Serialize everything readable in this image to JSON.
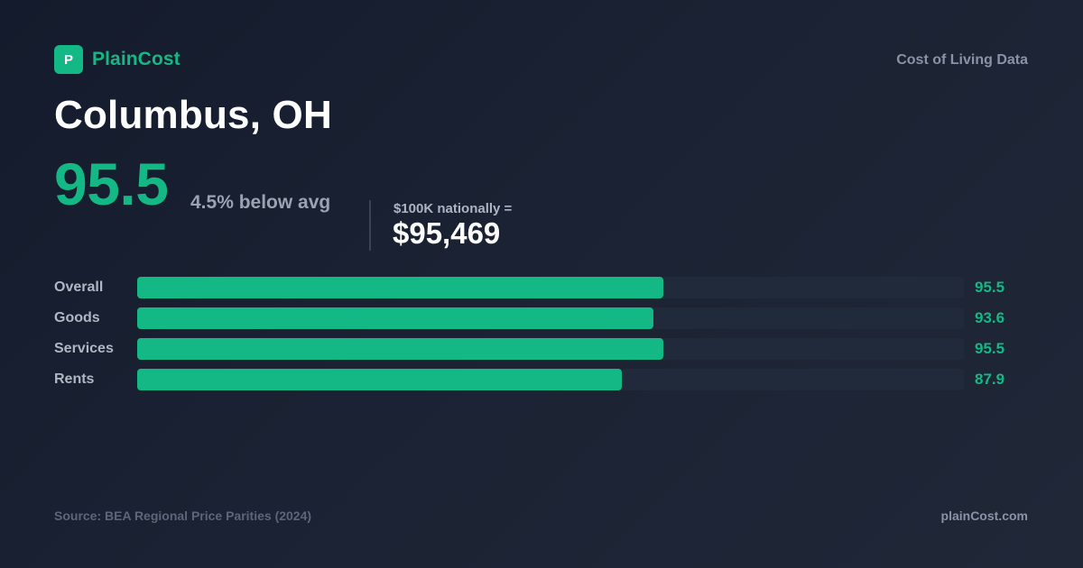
{
  "brand": {
    "logo_letter": "P",
    "name": "PlainCost",
    "accent_color": "#14b884"
  },
  "header": {
    "tag": "Cost of Living Data"
  },
  "city": {
    "title": "Columbus, OH"
  },
  "headline": {
    "index": "95.5",
    "comparison": "4.5% below avg",
    "equivalent_label": "$100K nationally =",
    "equivalent_value": "$95,469"
  },
  "chart_data": {
    "type": "bar",
    "orientation": "horizontal",
    "categories": [
      "Overall",
      "Goods",
      "Services",
      "Rents"
    ],
    "values": [
      95.5,
      93.6,
      95.5,
      87.9
    ],
    "value_labels": [
      "95.5",
      "93.6",
      "95.5",
      "87.9"
    ],
    "xlim": [
      0,
      150
    ],
    "grid": false,
    "colors": {
      "bar": "#14b884",
      "track": "#202a3a",
      "value_text": "#14b884"
    }
  },
  "footer": {
    "source": "Source: BEA Regional Price Parities (2024)",
    "url": "plainCost.com"
  }
}
